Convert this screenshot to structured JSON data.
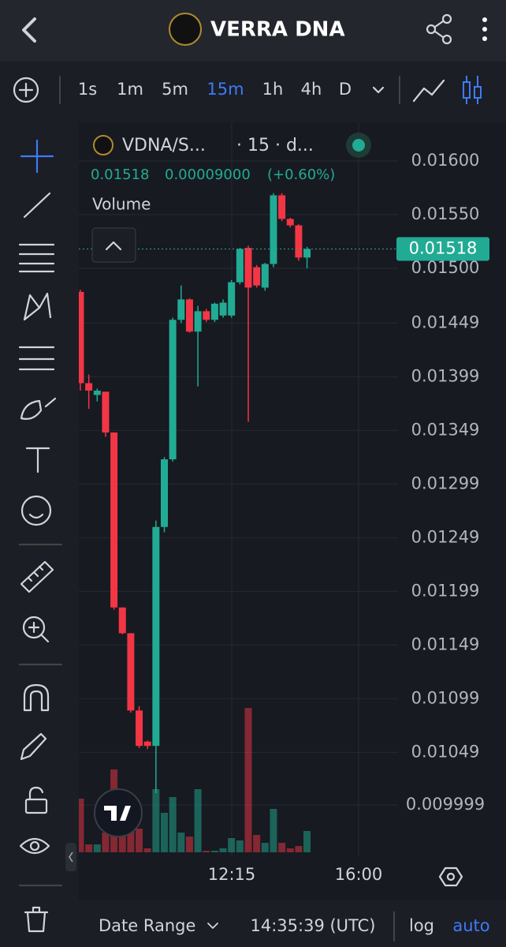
{
  "header": {
    "title": "VERRA DNA"
  },
  "timeframes": {
    "items": [
      "1s",
      "1m",
      "5m",
      "15m",
      "1h",
      "4h",
      "D"
    ],
    "active": 3
  },
  "chart_data": {
    "type": "candlestick",
    "symbol": "VDNA/S...",
    "interval": "· 15 · d...",
    "last_price": 0.01518,
    "change": {
      "value": 9e-05,
      "label": "0.00009000"
    },
    "change_percent": {
      "value": 0.6,
      "label": "(+0.60%)"
    },
    "volume_label": "Volume",
    "open": [
      0.01478,
      0.01393,
      0.01382,
      0.01385,
      0.01347,
      0.01184,
      0.0116,
      0.01088,
      0.01059,
      0.01055,
      0.01259,
      0.01322,
      0.01452,
      0.01471,
      0.01441,
      0.0146,
      0.01452,
      0.01456,
      0.01456,
      0.01487,
      0.01519,
      0.01501,
      0.01482,
      0.01504,
      0.01568,
      0.01546,
      0.0154,
      0.0151
    ],
    "high": [
      0.0148,
      0.01401,
      0.01388,
      0.01385,
      0.01347,
      0.01184,
      0.0116,
      0.01092,
      0.0106,
      0.01265,
      0.01324,
      0.01454,
      0.01484,
      0.01472,
      0.01465,
      0.01462,
      0.01468,
      0.01471,
      0.01489,
      0.01519,
      0.01521,
      0.01503,
      0.01505,
      0.0157,
      0.0157,
      0.01547,
      0.01541,
      0.0152
    ],
    "low": [
      0.01386,
      0.01369,
      0.01376,
      0.01343,
      0.01182,
      0.01159,
      0.01086,
      0.01053,
      0.01052,
      0.01011,
      0.01254,
      0.0132,
      0.01449,
      0.0144,
      0.0139,
      0.0145,
      0.0145,
      0.01454,
      0.01454,
      0.01485,
      0.01357,
      0.01482,
      0.01479,
      0.01501,
      0.01544,
      0.01538,
      0.01507,
      0.015
    ],
    "close": [
      0.01393,
      0.01386,
      0.01386,
      0.01347,
      0.01184,
      0.0116,
      0.01088,
      0.01055,
      0.01055,
      0.01259,
      0.01322,
      0.01452,
      0.01471,
      0.01441,
      0.0146,
      0.01452,
      0.01467,
      0.01468,
      0.01487,
      0.01518,
      0.01482,
      0.01484,
      0.01504,
      0.01568,
      0.01546,
      0.0154,
      0.0151,
      0.01518
    ],
    "volume": [
      68,
      10,
      10,
      25,
      105,
      30,
      30,
      30,
      5,
      80,
      50,
      70,
      25,
      20,
      80,
      2,
      2,
      5,
      18,
      15,
      183,
      22,
      12,
      55,
      12,
      5,
      8,
      27
    ],
    "up_color": "#22ab94",
    "down_color": "#f23645",
    "ylim": [
      0.009522,
      0.01636
    ],
    "yticks": [
      {
        "value": 0.016,
        "label": "0.01600"
      },
      {
        "value": 0.0155,
        "label": "0.01550"
      },
      {
        "value": 0.015,
        "label": "0.01500"
      },
      0.01449,
      0.01399,
      0.01349,
      0.01299,
      0.01249,
      0.01199,
      0.01149,
      0.01099,
      0.01049,
      0.009999
    ],
    "x_tick_labels": [
      "12:15",
      "16:00"
    ],
    "grid": true
  },
  "footer": {
    "date_range": "Date Range",
    "time": "14:35:39 (UTC)",
    "log": "log",
    "auto": "auto"
  }
}
